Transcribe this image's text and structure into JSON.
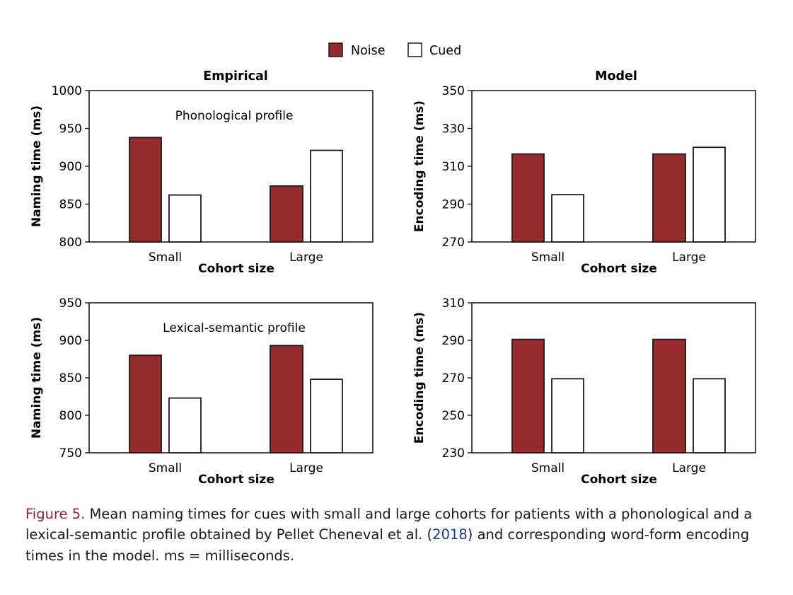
{
  "colors": {
    "noise": "#962a2e",
    "cued": "#ffffff",
    "stroke": "#1a1a1a",
    "caption_label": "#8b2530",
    "citation": "#1a3a8a"
  },
  "legend": [
    {
      "label": "Noise",
      "color": "#962a2e"
    },
    {
      "label": "Cued",
      "color": "#ffffff"
    }
  ],
  "column_titles": [
    "Empirical",
    "Model"
  ],
  "chart_data": [
    {
      "type": "bar",
      "annotation": "Phonological profile",
      "categories": [
        "Small",
        "Large"
      ],
      "xlabel": "Cohort size",
      "ylabel": "Naming time (ms)",
      "ylim": [
        800,
        1000
      ],
      "yticks": [
        "800",
        "850",
        "900",
        "950",
        "1000"
      ],
      "series": [
        {
          "name": "Noise",
          "values": [
            938,
            874
          ]
        },
        {
          "name": "Cued",
          "values": [
            862,
            921
          ]
        }
      ]
    },
    {
      "type": "bar",
      "annotation": "",
      "categories": [
        "Small",
        "Large"
      ],
      "xlabel": "Cohort size",
      "ylabel": "Encoding time (ms)",
      "ylim": [
        270,
        350
      ],
      "yticks": [
        "270",
        "290",
        "310",
        "330",
        "350"
      ],
      "series": [
        {
          "name": "Noise",
          "values": [
            316.5,
            316.5
          ]
        },
        {
          "name": "Cued",
          "values": [
            295,
            320
          ]
        }
      ]
    },
    {
      "type": "bar",
      "annotation": "Lexical-semantic profile",
      "categories": [
        "Small",
        "Large"
      ],
      "xlabel": "Cohort size",
      "ylabel": "Naming time (ms)",
      "ylim": [
        750,
        950
      ],
      "yticks": [
        "750",
        "800",
        "850",
        "900",
        "950"
      ],
      "series": [
        {
          "name": "Noise",
          "values": [
            880,
            893
          ]
        },
        {
          "name": "Cued",
          "values": [
            823,
            848
          ]
        }
      ]
    },
    {
      "type": "bar",
      "annotation": "",
      "categories": [
        "Small",
        "Large"
      ],
      "xlabel": "Cohort size",
      "ylabel": "Encoding time (ms)",
      "ylim": [
        230,
        310
      ],
      "yticks": [
        "230",
        "250",
        "270",
        "290",
        "310"
      ],
      "series": [
        {
          "name": "Noise",
          "values": [
            290.5,
            290.5
          ]
        },
        {
          "name": "Cued",
          "values": [
            269.5,
            269.5
          ]
        }
      ]
    }
  ],
  "caption": {
    "label": "Figure 5.",
    "text_before": " Mean naming times for cues with small and large cohorts for patients with a phonological and a lexical-semantic profile obtained by Pellet Cheneval et al. (",
    "citation": "2018",
    "text_after": ") and corresponding word-form encoding times in the model. ms = milliseconds."
  }
}
